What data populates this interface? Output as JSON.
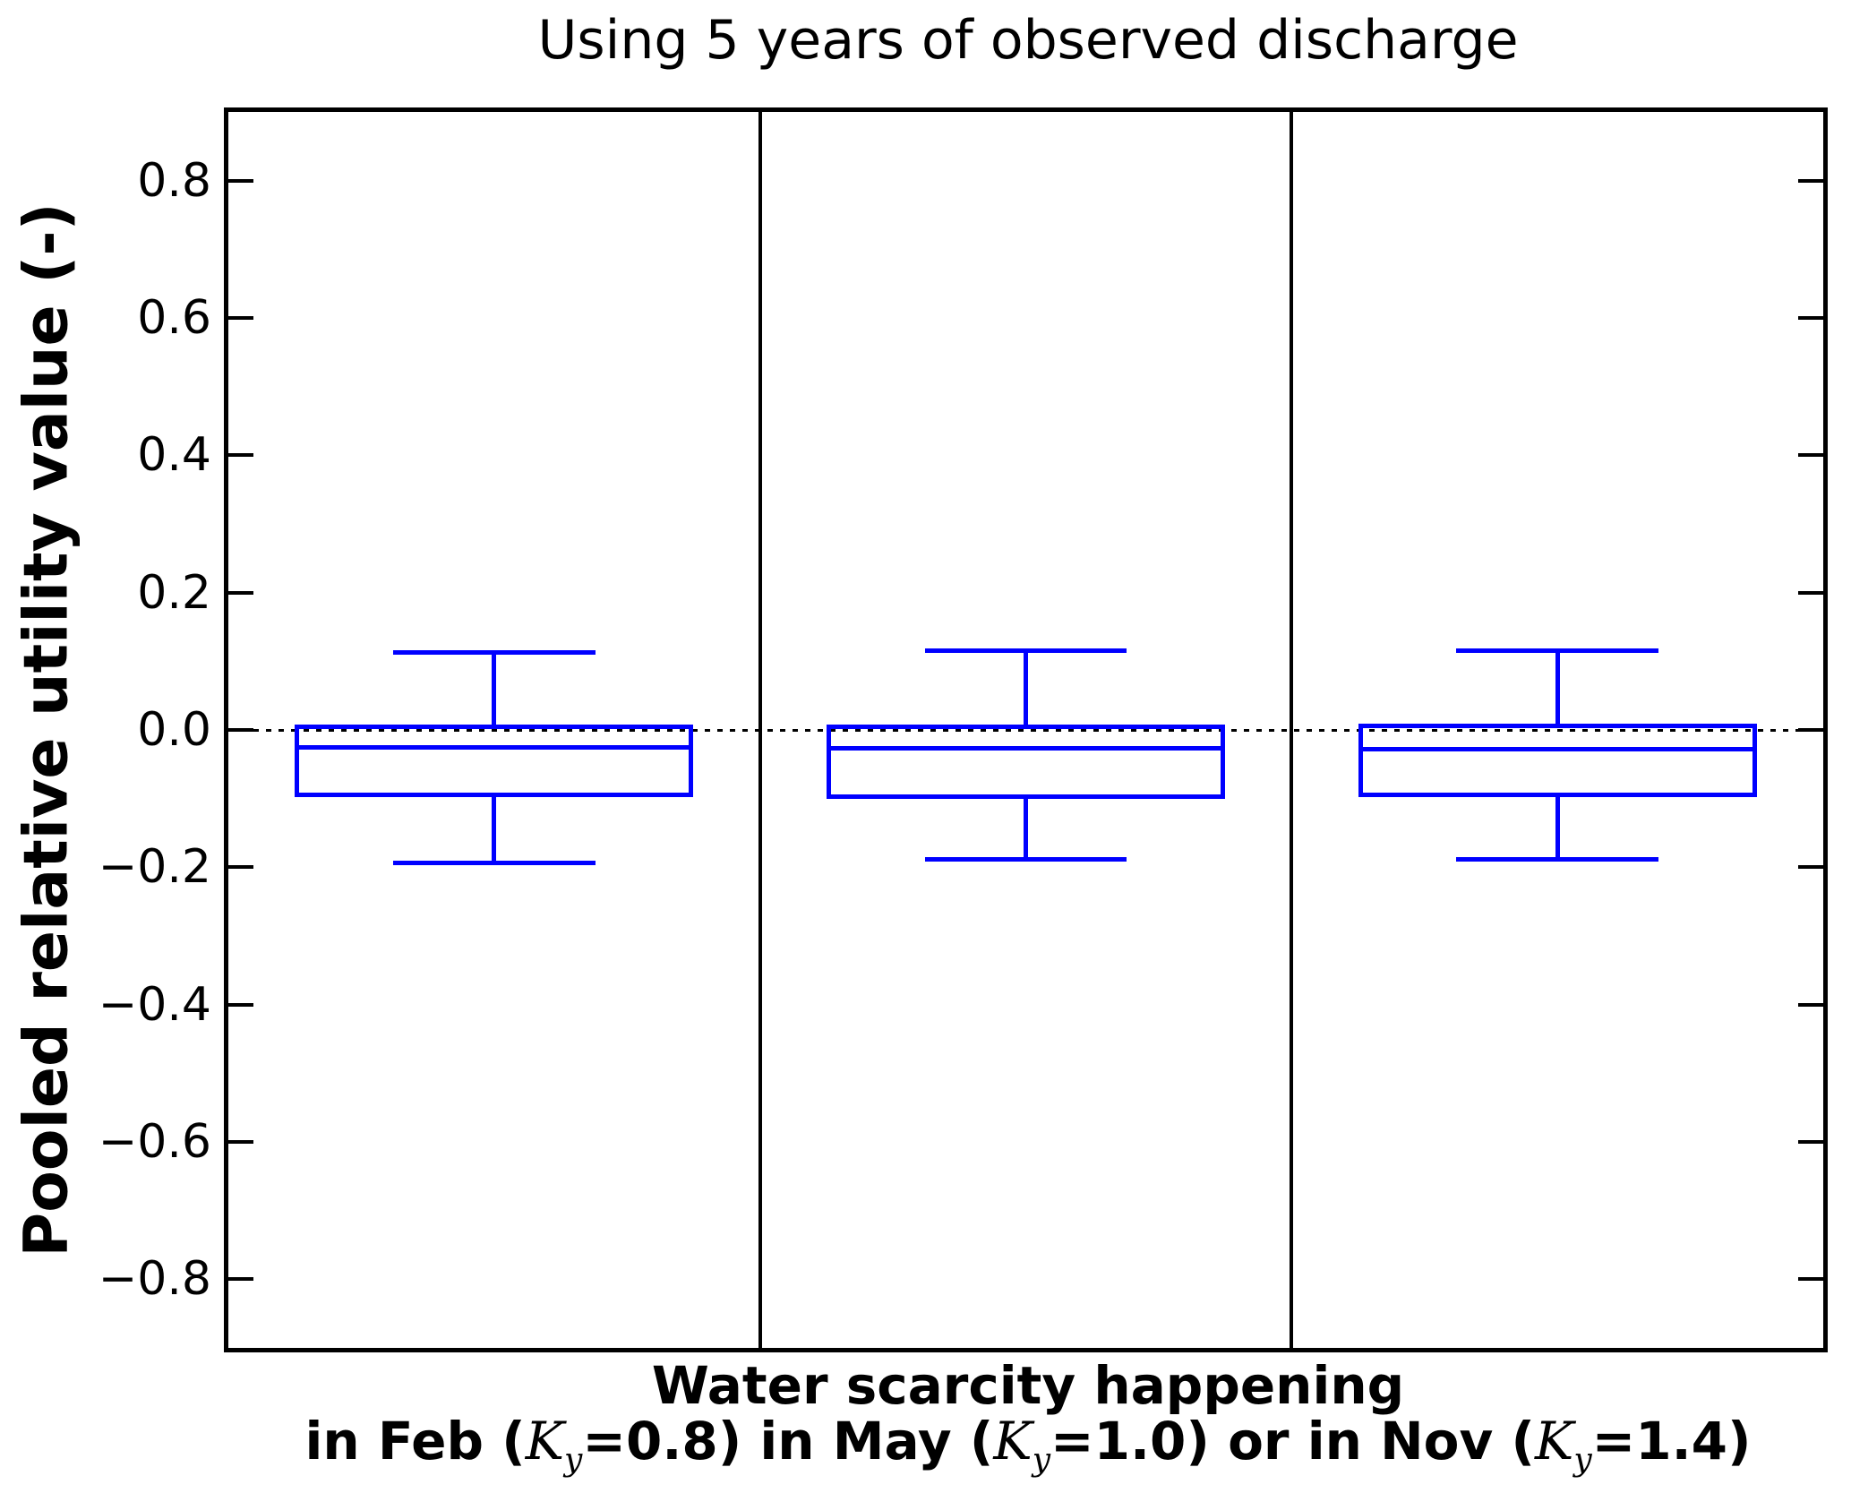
{
  "title": "Using 5 years of observed discharge",
  "chart_data": {
    "type": "boxplot",
    "title": "Using 5 years of observed discharge",
    "ylabel": "Pooled relative utility value (-)",
    "xlabel_line1": "Water scarcity happening",
    "xlabel_line2": "in Feb (K_y=0.8) in May (K_y=1.0) or in Nov (K_y=1.4)",
    "ylim": [
      -0.9,
      0.9
    ],
    "yticks": [
      0.8,
      0.6,
      0.4,
      0.2,
      0.0,
      -0.2,
      -0.4,
      -0.6,
      -0.8
    ],
    "ytick_labels": [
      "0.8",
      "0.6",
      "0.4",
      "0.2",
      "0.0",
      "−0.2",
      "−0.4",
      "−0.6",
      "−0.8"
    ],
    "grid": false,
    "legend_position": "none",
    "zero_line": {
      "y": 0.0,
      "style": "dotted",
      "color": "#000000"
    },
    "panel_count": 3,
    "categories": [
      "in Feb (K_y=0.8)",
      "in May (K_y=1.0)",
      "in Nov (K_y=1.4)"
    ],
    "series": [
      {
        "name": "Feb (K_y=0.8)",
        "whisker_low": -0.194,
        "q1": -0.094,
        "median": -0.025,
        "q3": 0.005,
        "whisker_high": 0.113
      },
      {
        "name": "May (K_y=1.0)",
        "whisker_low": -0.189,
        "q1": -0.097,
        "median": -0.027,
        "q3": 0.005,
        "whisker_high": 0.115
      },
      {
        "name": "Nov (K_y=1.4)",
        "whisker_low": -0.189,
        "q1": -0.095,
        "median": -0.028,
        "q3": 0.006,
        "whisker_high": 0.115
      }
    ],
    "box_color": "#0000ff",
    "axis_color": "#000000",
    "background_color": "#ffffff",
    "box_width_frac": 0.75,
    "cap_width_frac": 0.38
  }
}
